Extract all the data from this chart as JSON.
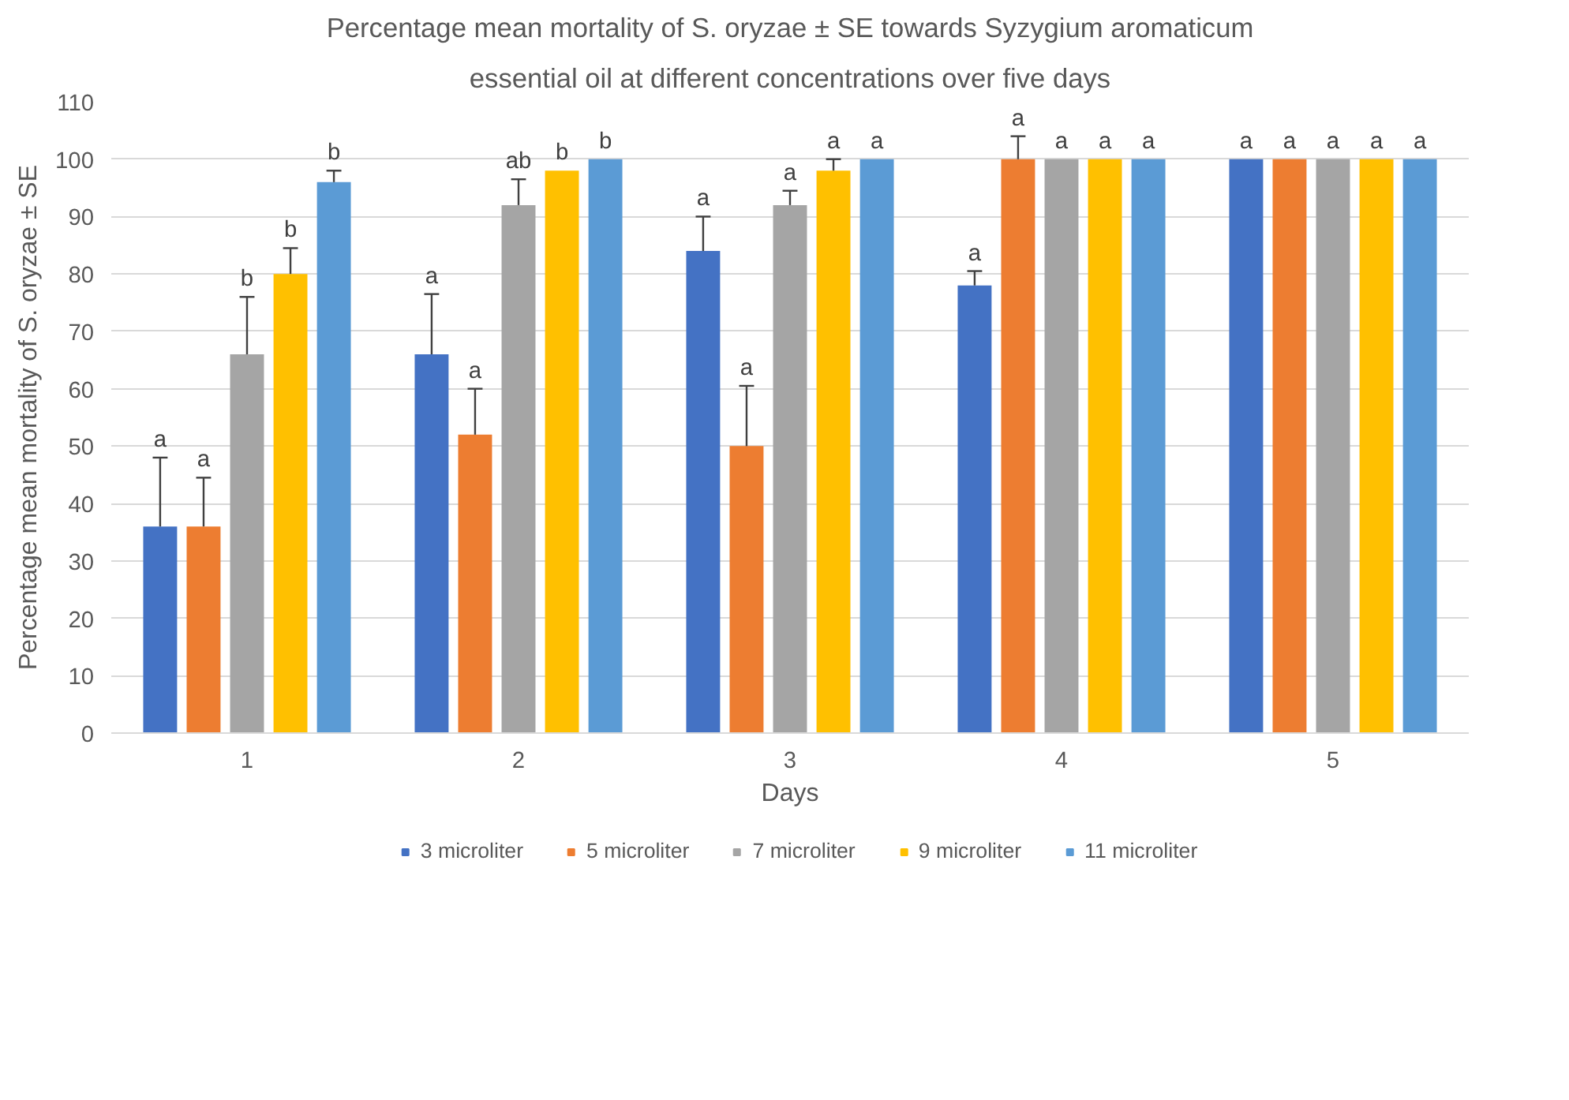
{
  "chart_data": {
    "type": "bar",
    "title": "Percentage mean mortality of S. oryzae ± SE towards Syzygium aromaticum",
    "subtitle": "essential oil at different concentrations over five days",
    "xlabel": "Days",
    "ylabel": "Percentage mean mortality of S. oryzae ± SE",
    "categories": [
      "1",
      "2",
      "3",
      "4",
      "5"
    ],
    "series": [
      {
        "name": "3 microliter",
        "color": "#4472c4",
        "values": [
          36,
          66,
          84,
          78,
          100
        ],
        "errors": [
          [
            36,
            48
          ],
          [
            66,
            76.5
          ],
          [
            84,
            90
          ],
          [
            78,
            80.5
          ],
          null
        ],
        "value_labels": [
          "a",
          "a",
          "a",
          "a",
          "a"
        ]
      },
      {
        "name": "5 microliter",
        "color": "#ed7d31",
        "values": [
          36,
          52,
          50,
          100,
          100
        ],
        "errors": [
          [
            36,
            44.5
          ],
          [
            52,
            60
          ],
          [
            50,
            60.5
          ],
          [
            100,
            104
          ],
          null
        ],
        "value_labels": [
          "a",
          "a",
          "a",
          "a",
          "a"
        ]
      },
      {
        "name": "7 microliter",
        "color": "#a5a5a5",
        "values": [
          66,
          92,
          92,
          100,
          100
        ],
        "errors": [
          [
            66,
            76
          ],
          [
            92,
            96.5
          ],
          [
            92,
            94.5
          ],
          null,
          null
        ],
        "value_labels": [
          "b",
          "ab",
          "a",
          "a",
          "a"
        ]
      },
      {
        "name": "9 microliter",
        "color": "#ffc000",
        "values": [
          80,
          98,
          98,
          100,
          100
        ],
        "errors": [
          [
            80,
            84.5
          ],
          null,
          [
            98,
            100
          ],
          null,
          null
        ],
        "value_labels": [
          "b",
          "b",
          "a",
          "a",
          "a"
        ]
      },
      {
        "name": "11 microliter",
        "color": "#5b9bd5",
        "values": [
          96,
          100,
          100,
          100,
          100
        ],
        "errors": [
          [
            96,
            98
          ],
          null,
          null,
          null,
          null
        ],
        "value_labels": [
          "b",
          "b",
          "a",
          "a",
          "a"
        ]
      }
    ],
    "ylim": [
      0,
      110
    ],
    "yticks": [
      0,
      10,
      20,
      30,
      40,
      50,
      60,
      70,
      80,
      90,
      100,
      110
    ],
    "grid": "y",
    "legend": "bottom"
  }
}
